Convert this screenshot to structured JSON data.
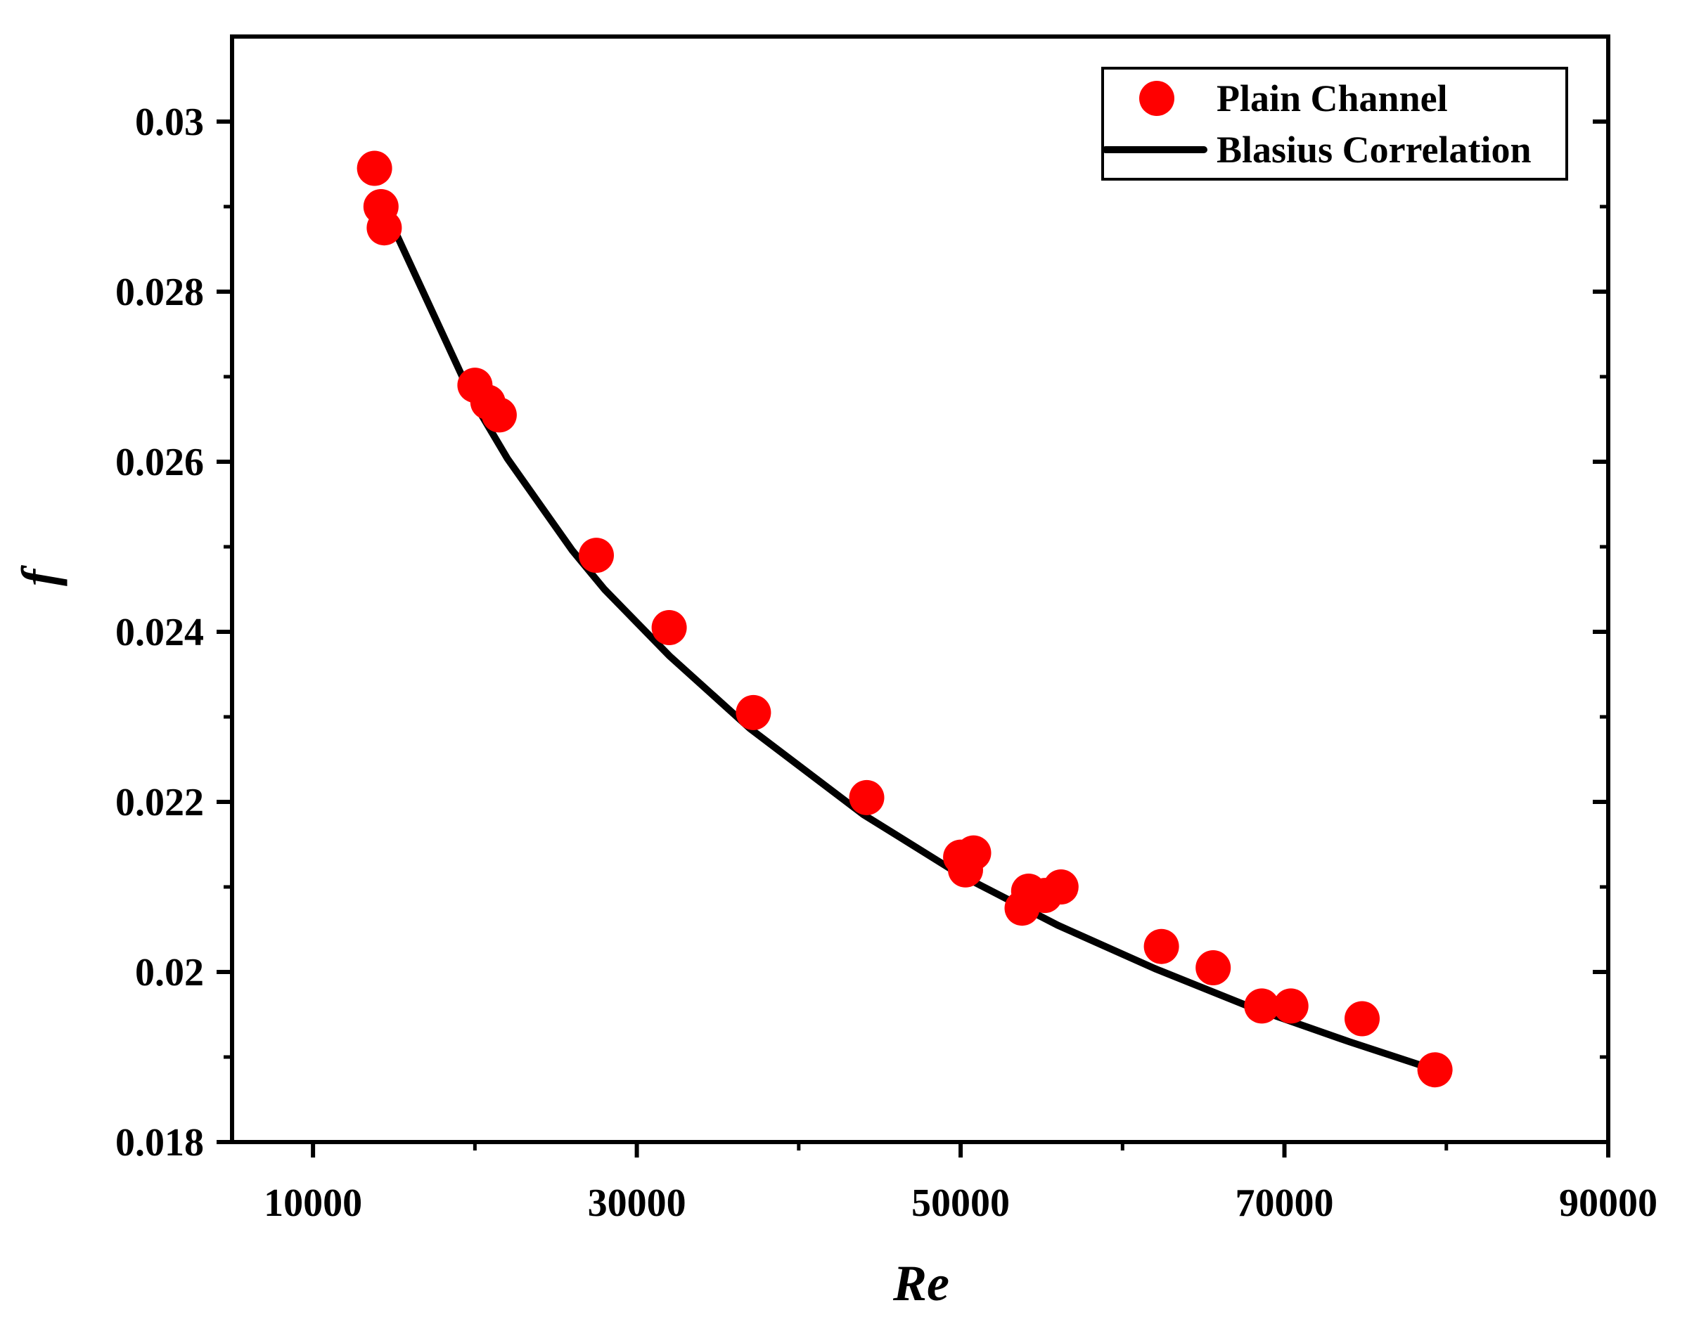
{
  "chart_data": {
    "type": "scatter",
    "title": "",
    "xlabel": "Re",
    "ylabel": "f",
    "xlim": [
      5000,
      90000
    ],
    "ylim": [
      0.018,
      0.031
    ],
    "x_ticks": [
      10000,
      30000,
      50000,
      70000,
      90000
    ],
    "x_tick_labels": [
      "10000",
      "30000",
      "50000",
      "70000",
      "90000"
    ],
    "y_ticks": [
      0.018,
      0.02,
      0.022,
      0.024,
      0.026,
      0.028,
      0.03
    ],
    "y_tick_labels": [
      "0.018",
      "0.02",
      "0.022",
      "0.024",
      "0.026",
      "0.028",
      "0.03"
    ],
    "grid": false,
    "legend_position": "top-right",
    "colors": {
      "points": "#ff0000",
      "line": "#000000",
      "axes": "#000000"
    },
    "series": [
      {
        "name": "Plain Channel",
        "kind": "scatter",
        "x": [
          13800,
          14200,
          14400,
          20000,
          20800,
          21500,
          27500,
          32000,
          37200,
          44200,
          50000,
          50300,
          50800,
          53800,
          54200,
          55200,
          56200,
          62400,
          65600,
          68600,
          70400,
          74800,
          79300
        ],
        "y": [
          0.02945,
          0.029,
          0.02875,
          0.0269,
          0.0267,
          0.02655,
          0.0249,
          0.02405,
          0.02305,
          0.02205,
          0.02135,
          0.0212,
          0.0214,
          0.02075,
          0.02095,
          0.0209,
          0.021,
          0.0203,
          0.02005,
          0.0196,
          0.0196,
          0.01945,
          0.01885
        ]
      },
      {
        "name": "Blasius Correlation",
        "kind": "line",
        "x": [
          14000,
          20000,
          22000,
          26000,
          28000,
          32000,
          37000,
          44000,
          50000,
          56000,
          62000,
          68000,
          74000,
          79300
        ],
        "y": [
          0.02915,
          0.02668,
          0.02604,
          0.02496,
          0.0245,
          0.02372,
          0.02286,
          0.02185,
          0.02114,
          0.02055,
          0.02004,
          0.01958,
          0.01918,
          0.01885
        ]
      }
    ]
  }
}
